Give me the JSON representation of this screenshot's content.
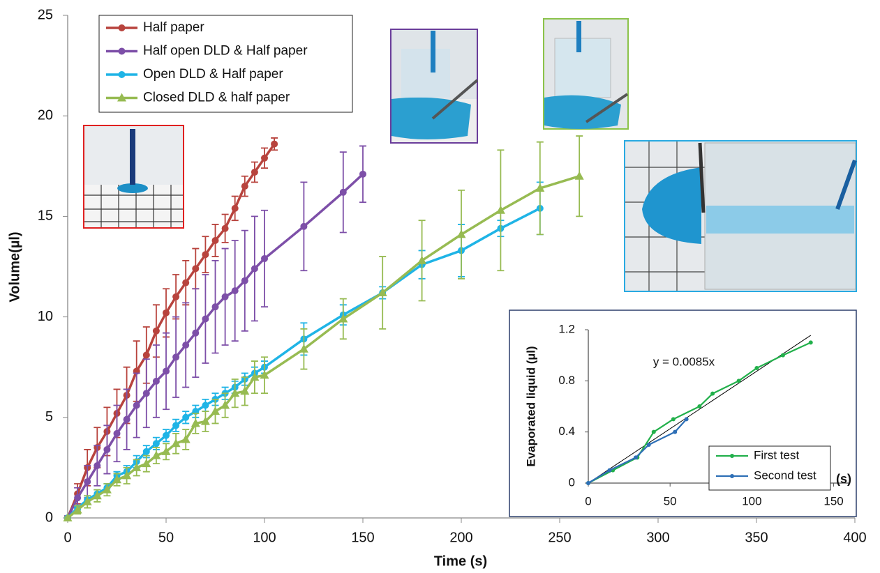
{
  "chart_data": [
    {
      "type": "line",
      "x_label": "Time (s)",
      "y_label": "Volume(µl)",
      "xlim": [
        0,
        400
      ],
      "xticks": [
        0,
        50,
        100,
        150,
        200,
        250,
        300,
        350,
        400
      ],
      "ylim": [
        0,
        25
      ],
      "yticks": [
        0,
        5,
        10,
        15,
        20,
        25
      ],
      "series": [
        {
          "name": "Half paper",
          "color": "#b8433d",
          "marker": "circle",
          "x": [
            0,
            5,
            10,
            15,
            20,
            25,
            30,
            35,
            40,
            45,
            50,
            55,
            60,
            65,
            70,
            75,
            80,
            85,
            90,
            95,
            100,
            105
          ],
          "values": [
            0,
            1.2,
            2.5,
            3.5,
            4.3,
            5.2,
            6.1,
            7.3,
            8.1,
            9.3,
            10.2,
            11.0,
            11.7,
            12.4,
            13.1,
            13.8,
            14.4,
            15.4,
            16.5,
            17.2,
            17.9,
            18.6
          ],
          "errors": [
            0.1,
            0.5,
            0.9,
            1.0,
            1.2,
            1.2,
            1.4,
            1.5,
            1.4,
            1.3,
            1.2,
            1.1,
            1.1,
            1.0,
            0.9,
            0.8,
            0.7,
            0.6,
            0.5,
            0.5,
            0.5,
            0.3
          ]
        },
        {
          "name": "Half open DLD & Half paper",
          "color": "#7d4fa8",
          "marker": "circle",
          "x": [
            0,
            5,
            10,
            15,
            20,
            25,
            30,
            35,
            40,
            45,
            50,
            55,
            60,
            65,
            70,
            75,
            80,
            85,
            90,
            95,
            100,
            120,
            140,
            150
          ],
          "values": [
            0,
            1.0,
            1.8,
            2.6,
            3.4,
            4.2,
            4.9,
            5.6,
            6.2,
            6.8,
            7.3,
            8.0,
            8.6,
            9.2,
            9.9,
            10.5,
            11.0,
            11.3,
            11.8,
            12.4,
            12.9,
            14.5,
            16.2,
            17.1
          ],
          "errors": [
            0.1,
            0.5,
            0.8,
            1.0,
            1.2,
            1.4,
            1.5,
            1.6,
            1.7,
            1.8,
            1.9,
            2.0,
            2.1,
            2.2,
            2.2,
            2.3,
            2.4,
            2.5,
            2.5,
            2.6,
            2.4,
            2.2,
            2.0,
            1.4
          ]
        },
        {
          "name": "Open DLD & Half paper",
          "color": "#1fb4e6",
          "marker": "circle",
          "x": [
            0,
            5,
            10,
            15,
            20,
            25,
            30,
            35,
            40,
            45,
            50,
            55,
            60,
            65,
            70,
            75,
            80,
            85,
            90,
            95,
            100,
            120,
            140,
            160,
            180,
            200,
            220,
            240
          ],
          "values": [
            0,
            0.5,
            0.9,
            1.2,
            1.5,
            2.1,
            2.3,
            2.8,
            3.3,
            3.7,
            4.1,
            4.6,
            5.0,
            5.3,
            5.6,
            5.9,
            6.2,
            6.5,
            6.9,
            7.2,
            7.5,
            8.9,
            10.1,
            11.2,
            12.6,
            13.3,
            14.4,
            15.4
          ],
          "errors": [
            0.05,
            0.1,
            0.2,
            0.2,
            0.2,
            0.2,
            0.3,
            0.3,
            0.3,
            0.3,
            0.3,
            0.3,
            0.3,
            0.3,
            0.3,
            0.3,
            0.3,
            0.3,
            0.3,
            0.3,
            0.3,
            0.8,
            0.5,
            0.3,
            0.7,
            1.3,
            0.4,
            1.3
          ]
        },
        {
          "name": "Closed DLD & half paper",
          "color": "#97bb52",
          "marker": "triangle",
          "x": [
            0,
            5,
            10,
            15,
            20,
            25,
            30,
            35,
            40,
            45,
            50,
            55,
            60,
            65,
            70,
            75,
            80,
            85,
            90,
            95,
            100,
            120,
            140,
            160,
            180,
            200,
            220,
            240,
            260
          ],
          "values": [
            0,
            0.4,
            0.8,
            1.1,
            1.4,
            1.9,
            2.1,
            2.5,
            2.7,
            3.1,
            3.3,
            3.7,
            3.9,
            4.7,
            4.8,
            5.3,
            5.6,
            6.2,
            6.3,
            7.0,
            7.1,
            8.4,
            9.9,
            11.2,
            12.8,
            14.1,
            15.3,
            16.4,
            17.0
          ],
          "errors": [
            0.05,
            0.2,
            0.3,
            0.3,
            0.3,
            0.3,
            0.4,
            0.4,
            0.4,
            0.4,
            0.4,
            0.5,
            0.5,
            0.5,
            0.5,
            0.6,
            0.6,
            0.7,
            0.7,
            0.8,
            0.9,
            1.0,
            1.0,
            1.8,
            2.0,
            2.2,
            3.0,
            2.3,
            2.0
          ]
        }
      ]
    },
    {
      "type": "line",
      "x_label": "(s)",
      "y_label": "Evaporated liquid (µl)",
      "xlim": [
        0,
        160
      ],
      "xticks": [
        0,
        50,
        100,
        150
      ],
      "ylim": [
        0,
        1.2
      ],
      "yticks": [
        0,
        0.4,
        0.8,
        1.2
      ],
      "trendline": {
        "label": "y = 0.0085x",
        "slope": 0.0085
      },
      "series": [
        {
          "name": "First test",
          "color": "#22b04b",
          "marker": "circle",
          "x": [
            0,
            15,
            30,
            40,
            52,
            68,
            76,
            92,
            103,
            119,
            136
          ],
          "values": [
            0,
            0.1,
            0.2,
            0.4,
            0.5,
            0.6,
            0.7,
            0.8,
            0.9,
            1.0,
            1.1
          ]
        },
        {
          "name": "Second test",
          "color": "#2e6fb6",
          "marker": "circle",
          "x": [
            0,
            13,
            29,
            37,
            53,
            60
          ],
          "values": [
            0,
            0.1,
            0.2,
            0.3,
            0.4,
            0.5
          ]
        }
      ]
    }
  ]
}
